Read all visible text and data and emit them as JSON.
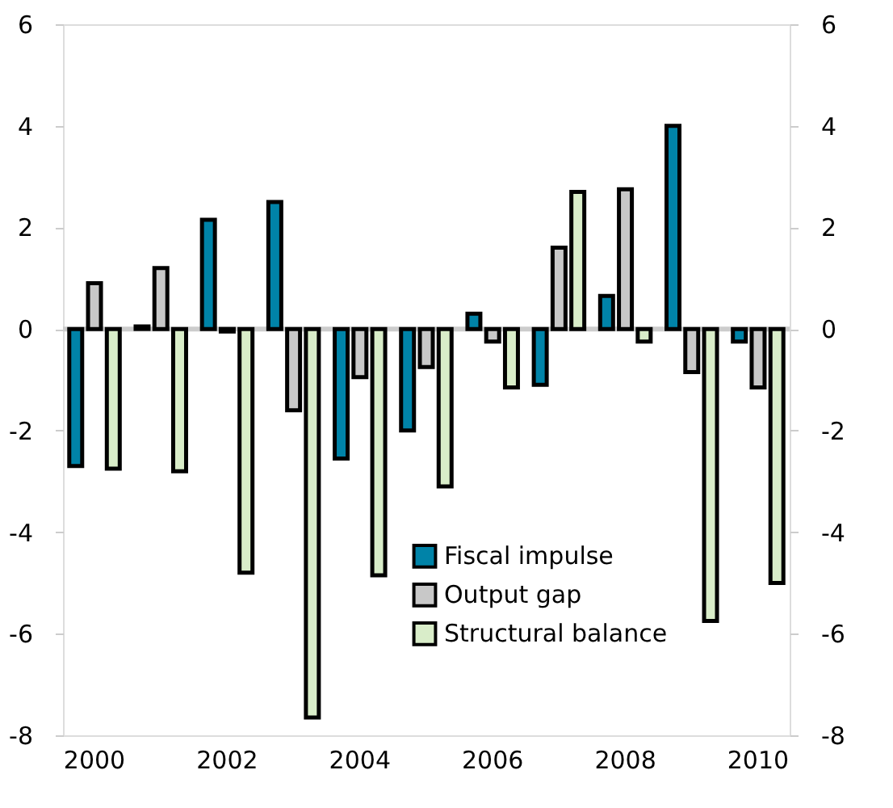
{
  "chart_data": {
    "type": "bar",
    "categories": [
      "2000",
      null,
      "2002",
      null,
      "2004",
      null,
      "2006",
      null,
      "2008",
      null,
      "2010"
    ],
    "series": [
      {
        "name": "Fiscal impulse",
        "color": "#0083a8",
        "values": [
          -2.7,
          0.05,
          2.15,
          2.5,
          -2.55,
          -2.0,
          0.3,
          -1.1,
          0.65,
          4.0,
          -0.25
        ]
      },
      {
        "name": "Output gap",
        "color": "#c8c8c8",
        "values": [
          0.9,
          1.2,
          -0.05,
          -1.6,
          -0.95,
          -0.75,
          -0.25,
          1.6,
          2.75,
          -0.85,
          -1.15
        ]
      },
      {
        "name": "Structural balance",
        "color": "#d9edc9",
        "values": [
          -2.75,
          -2.8,
          -4.8,
          -7.65,
          -4.85,
          -3.1,
          -1.15,
          2.7,
          -0.25,
          -5.75,
          -5.0
        ]
      }
    ],
    "ylim": [
      -8,
      6
    ],
    "yticks": [
      -8,
      -6,
      -4,
      -2,
      0,
      2,
      4,
      6
    ],
    "y2lim": [
      -8,
      6
    ],
    "y2ticks": [
      -8,
      -6,
      -4,
      -2,
      0,
      2,
      4,
      6
    ],
    "legend": "bottom"
  }
}
